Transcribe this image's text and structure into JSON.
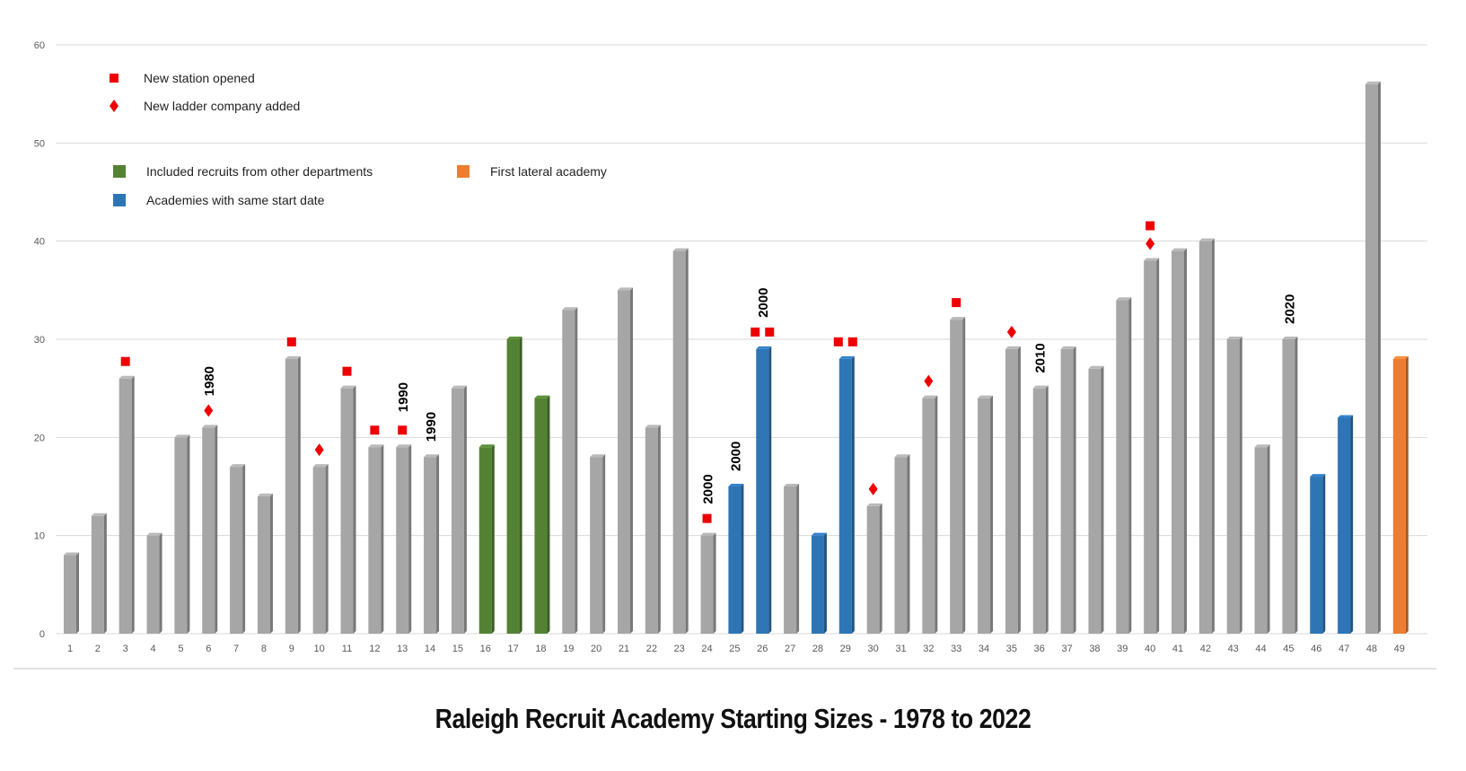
{
  "chart_data": {
    "type": "bar",
    "title": "Raleigh Recruit Academy Starting Sizes - 1978 to 2022",
    "categories": [
      "1",
      "2",
      "3",
      "4",
      "5",
      "6",
      "7",
      "8",
      "9",
      "10",
      "11",
      "12",
      "13",
      "14",
      "15",
      "16",
      "17",
      "18",
      "19",
      "20",
      "21",
      "22",
      "23",
      "24",
      "25",
      "26",
      "27",
      "28",
      "29",
      "30",
      "31",
      "32",
      "33",
      "34",
      "35",
      "36",
      "37",
      "38",
      "39",
      "40",
      "41",
      "42",
      "43",
      "44",
      "45",
      "46",
      "47",
      "48",
      "49"
    ],
    "values": [
      8,
      12,
      26,
      10,
      20,
      21,
      17,
      14,
      28,
      17,
      25,
      19,
      19,
      18,
      25,
      19,
      30,
      24,
      33,
      18,
      35,
      21,
      39,
      10,
      15,
      29,
      15,
      10,
      28,
      13,
      18,
      24,
      32,
      24,
      29,
      25,
      29,
      27,
      34,
      38,
      39,
      40,
      30,
      19,
      30,
      16,
      22,
      56,
      28
    ],
    "bar_kinds": [
      "gray",
      "gray",
      "gray",
      "gray",
      "gray",
      "gray",
      "gray",
      "gray",
      "gray",
      "gray",
      "gray",
      "gray",
      "gray",
      "gray",
      "gray",
      "green",
      "green",
      "green",
      "gray",
      "gray",
      "gray",
      "gray",
      "gray",
      "gray",
      "blue",
      "blue",
      "gray",
      "blue",
      "blue",
      "gray",
      "gray",
      "gray",
      "gray",
      "gray",
      "gray",
      "gray",
      "gray",
      "gray",
      "gray",
      "gray",
      "gray",
      "gray",
      "gray",
      "gray",
      "gray",
      "blue",
      "blue",
      "gray",
      "orange"
    ],
    "ylim": [
      0,
      60
    ],
    "yticks": [
      "0",
      "10",
      "20",
      "30",
      "40",
      "50",
      "60"
    ],
    "grid": true,
    "colors": {
      "gray": "#a6a6a6",
      "green": "#548235",
      "blue": "#2e75b6",
      "orange": "#ed7d31",
      "marker": "#ee0000"
    },
    "legend": {
      "placement": "top-left",
      "markers": [
        {
          "label": "New station opened",
          "symbol": "square"
        },
        {
          "label": "New ladder company added",
          "symbol": "diamond"
        }
      ],
      "swatches": [
        {
          "label": "Included recruits from other departments",
          "kind": "green"
        },
        {
          "label": "First lateral academy",
          "kind": "orange"
        },
        {
          "label": "Academies with  same start date",
          "kind": "blue"
        }
      ]
    },
    "event_markers": [
      {
        "bar": 3,
        "symbols": [
          "square"
        ]
      },
      {
        "bar": 6,
        "symbols": [
          "diamond"
        ]
      },
      {
        "bar": 9,
        "symbols": [
          "square"
        ]
      },
      {
        "bar": 10,
        "symbols": [
          "diamond"
        ]
      },
      {
        "bar": 11,
        "symbols": [
          "square"
        ]
      },
      {
        "bar": 12,
        "symbols": [
          "square"
        ]
      },
      {
        "bar": 13,
        "symbols": [
          "square"
        ]
      },
      {
        "bar": 24,
        "symbols": [
          "square"
        ]
      },
      {
        "bar": 26,
        "symbols": [
          "square",
          "square"
        ]
      },
      {
        "bar": 29,
        "symbols": [
          "square",
          "square"
        ]
      },
      {
        "bar": 30,
        "symbols": [
          "diamond"
        ]
      },
      {
        "bar": 32,
        "symbols": [
          "diamond"
        ]
      },
      {
        "bar": 33,
        "symbols": [
          "square"
        ]
      },
      {
        "bar": 35,
        "symbols": [
          "diamond"
        ]
      },
      {
        "bar": 40,
        "symbols": [
          "square",
          "diamond"
        ]
      }
    ],
    "year_labels": [
      {
        "bar": 6,
        "text": "1980"
      },
      {
        "bar": 13,
        "text": "1990"
      },
      {
        "bar": 14,
        "text": "1990"
      },
      {
        "bar": 24,
        "text": "2000"
      },
      {
        "bar": 25,
        "text": "2000"
      },
      {
        "bar": 26,
        "text": "2000"
      },
      {
        "bar": 36,
        "text": "2010"
      },
      {
        "bar": 45,
        "text": "2020"
      }
    ]
  }
}
